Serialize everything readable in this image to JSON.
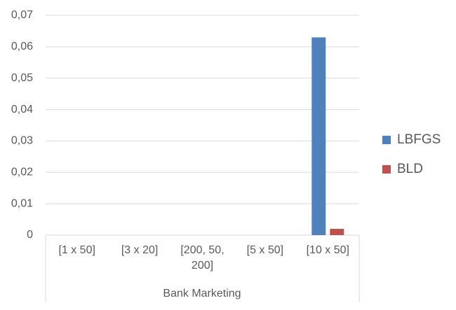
{
  "chart_data": {
    "type": "bar",
    "categories": [
      "[1 x 50]",
      "[3 x 20]",
      "[200, 50, 200]",
      "[5 x 50]",
      "[10 x 50]"
    ],
    "group_label": "Bank Marketing",
    "series": [
      {
        "name": "LBFGS",
        "color": "#4f81bd",
        "values": [
          0,
          0,
          0,
          0,
          0.063
        ]
      },
      {
        "name": "BLD",
        "color": "#c0504d",
        "values": [
          0,
          0,
          0,
          0,
          0.002
        ]
      }
    ],
    "ylim": [
      0,
      0.07
    ],
    "yticks": [
      0,
      {
        "value": 0.01,
        "label": "0,01"
      },
      {
        "value": 0.02,
        "label": "0,02"
      },
      {
        "value": 0.03,
        "label": "0,03"
      },
      {
        "value": 0.04,
        "label": "0,04"
      },
      {
        "value": 0.05,
        "label": "0,05"
      },
      {
        "value": 0.06,
        "label": "0,06"
      },
      {
        "value": 0.07,
        "label": "0,07"
      }
    ],
    "grid": true,
    "legend": "right"
  }
}
